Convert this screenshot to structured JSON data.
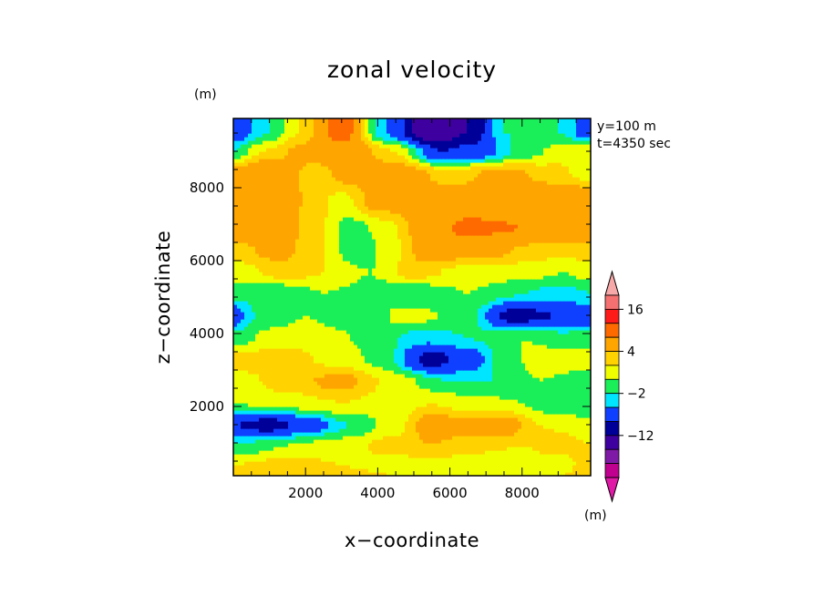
{
  "chart_data": {
    "type": "heatmap",
    "title": "zonal velocity",
    "xlabel": "x−coordinate",
    "ylabel": "z−coordinate",
    "x_unit": "(m)",
    "y_unit": "(m)",
    "colorbar_unit": "(m)",
    "annotations": [
      "y=100 m",
      "t=4350 sec"
    ],
    "xlim": [
      0,
      9900
    ],
    "ylim": [
      100,
      9900
    ],
    "x_ticks": [
      2000,
      4000,
      6000,
      8000
    ],
    "y_ticks": [
      2000,
      4000,
      6000,
      8000
    ],
    "levels": [
      -24,
      -20,
      -16,
      -12,
      -8,
      -4,
      -2,
      0,
      2,
      4,
      8,
      12,
      16,
      20,
      24
    ],
    "colorbar_labels": [
      {
        "label": "16",
        "value": 16
      },
      {
        "label": "4",
        "value": 4
      },
      {
        "label": "−2",
        "value": -2
      },
      {
        "label": "−12",
        "value": -12
      }
    ],
    "colors": [
      "#e01aa6",
      "#c0008f",
      "#7f1aa6",
      "#3f00a0",
      "#000099",
      "#1040ff",
      "#00e5ff",
      "#1aef5a",
      "#f0ff00",
      "#ffd200",
      "#ffa500",
      "#ff6a00",
      "#ff1a1a",
      "#f57070",
      "#f7a8a8"
    ],
    "bands": [
      {
        "z": 9550,
        "profile": [
          [
            0,
            -6
          ],
          [
            1000,
            -2
          ],
          [
            1800,
            2
          ],
          [
            3000,
            10
          ],
          [
            4200,
            -4
          ],
          [
            5500,
            -16
          ],
          [
            6500,
            -12
          ],
          [
            7500,
            -2
          ],
          [
            9000,
            -2
          ],
          [
            9900,
            -6
          ]
        ]
      },
      {
        "z": 9000,
        "profile": [
          [
            0,
            -2
          ],
          [
            800,
            2
          ],
          [
            2000,
            5
          ],
          [
            3200,
            6
          ],
          [
            4500,
            2
          ],
          [
            5800,
            -8
          ],
          [
            6800,
            -6
          ],
          [
            8000,
            -1
          ],
          [
            9200,
            1
          ],
          [
            9900,
            2
          ]
        ]
      },
      {
        "z": 8400,
        "profile": [
          [
            0,
            6
          ],
          [
            1000,
            8
          ],
          [
            2200,
            3
          ],
          [
            3200,
            5
          ],
          [
            4500,
            6
          ],
          [
            6000,
            3
          ],
          [
            7500,
            5
          ],
          [
            8800,
            3
          ],
          [
            9900,
            1
          ]
        ]
      },
      {
        "z": 7600,
        "profile": [
          [
            0,
            6
          ],
          [
            1200,
            7
          ],
          [
            2200,
            3
          ],
          [
            3000,
            1
          ],
          [
            4000,
            5
          ],
          [
            5500,
            6
          ],
          [
            7000,
            6
          ],
          [
            8500,
            7
          ],
          [
            9900,
            8
          ]
        ]
      },
      {
        "z": 6900,
        "profile": [
          [
            0,
            6
          ],
          [
            1200,
            6
          ],
          [
            2200,
            3
          ],
          [
            3300,
            -1
          ],
          [
            4200,
            1
          ],
          [
            5200,
            5
          ],
          [
            6500,
            9
          ],
          [
            8000,
            8
          ],
          [
            9900,
            7
          ]
        ]
      },
      {
        "z": 6300,
        "profile": [
          [
            0,
            3
          ],
          [
            1200,
            5
          ],
          [
            2200,
            3
          ],
          [
            3500,
            -2
          ],
          [
            4300,
            1
          ],
          [
            5500,
            6
          ],
          [
            7000,
            5
          ],
          [
            8500,
            3
          ],
          [
            9900,
            3
          ]
        ]
      },
      {
        "z": 5700,
        "profile": [
          [
            0,
            1
          ],
          [
            1500,
            3
          ],
          [
            2500,
            2
          ],
          [
            3800,
            0
          ],
          [
            5000,
            3
          ],
          [
            6500,
            1
          ],
          [
            8000,
            1
          ],
          [
            9200,
            0
          ],
          [
            9900,
            1
          ]
        ]
      },
      {
        "z": 5100,
        "profile": [
          [
            0,
            -1
          ],
          [
            1200,
            -2
          ],
          [
            2500,
            0
          ],
          [
            3800,
            -1
          ],
          [
            5000,
            -2
          ],
          [
            6500,
            0
          ],
          [
            8000,
            -2
          ],
          [
            9000,
            -3
          ],
          [
            9900,
            -2
          ]
        ]
      },
      {
        "z": 4500,
        "profile": [
          [
            0,
            -6
          ],
          [
            600,
            -2
          ],
          [
            2000,
            0
          ],
          [
            3500,
            -2
          ],
          [
            4800,
            1
          ],
          [
            6500,
            -1
          ],
          [
            7800,
            -10
          ],
          [
            9000,
            -8
          ],
          [
            9900,
            -6
          ]
        ]
      },
      {
        "z": 3900,
        "profile": [
          [
            0,
            -1
          ],
          [
            1200,
            1
          ],
          [
            2500,
            1
          ],
          [
            4000,
            -1
          ],
          [
            5200,
            -3
          ],
          [
            6500,
            -2
          ],
          [
            8000,
            0
          ],
          [
            9200,
            -1
          ],
          [
            9900,
            -1
          ]
        ]
      },
      {
        "z": 3300,
        "profile": [
          [
            0,
            3
          ],
          [
            1500,
            3
          ],
          [
            3000,
            1
          ],
          [
            4200,
            -1
          ],
          [
            5500,
            -10
          ],
          [
            6500,
            -6
          ],
          [
            7500,
            -1
          ],
          [
            8500,
            1
          ],
          [
            9900,
            1
          ]
        ]
      },
      {
        "z": 2700,
        "profile": [
          [
            0,
            1
          ],
          [
            1500,
            3
          ],
          [
            3000,
            5
          ],
          [
            4500,
            1
          ],
          [
            6000,
            -2
          ],
          [
            7500,
            -2
          ],
          [
            8500,
            0
          ],
          [
            9900,
            -1
          ]
        ]
      },
      {
        "z": 2100,
        "profile": [
          [
            0,
            0
          ],
          [
            1500,
            1
          ],
          [
            3000,
            2
          ],
          [
            4500,
            1
          ],
          [
            5500,
            2
          ],
          [
            6500,
            1
          ],
          [
            8000,
            0
          ],
          [
            9000,
            -2
          ],
          [
            9900,
            -2
          ]
        ]
      },
      {
        "z": 1500,
        "profile": [
          [
            0,
            -8
          ],
          [
            1000,
            -10
          ],
          [
            2000,
            -6
          ],
          [
            3200,
            -2
          ],
          [
            4500,
            1
          ],
          [
            5500,
            6
          ],
          [
            6500,
            5
          ],
          [
            7500,
            6
          ],
          [
            8500,
            2
          ],
          [
            9900,
            1
          ]
        ]
      },
      {
        "z": 950,
        "profile": [
          [
            0,
            -2
          ],
          [
            1500,
            0
          ],
          [
            3000,
            1
          ],
          [
            4500,
            3
          ],
          [
            5500,
            4
          ],
          [
            6500,
            3
          ],
          [
            8000,
            2
          ],
          [
            9000,
            3
          ],
          [
            9900,
            2
          ]
        ]
      },
      {
        "z": 400,
        "profile": [
          [
            0,
            2
          ],
          [
            1500,
            3
          ],
          [
            3000,
            2
          ],
          [
            4500,
            1
          ],
          [
            6000,
            1
          ],
          [
            7500,
            0
          ],
          [
            9000,
            1
          ],
          [
            9900,
            3
          ]
        ]
      },
      {
        "z": 100,
        "profile": [
          [
            0,
            3
          ],
          [
            1500,
            4
          ],
          [
            3000,
            3
          ],
          [
            4500,
            2
          ],
          [
            6000,
            2
          ],
          [
            7500,
            1
          ],
          [
            9000,
            2
          ],
          [
            9900,
            3
          ]
        ]
      }
    ]
  }
}
